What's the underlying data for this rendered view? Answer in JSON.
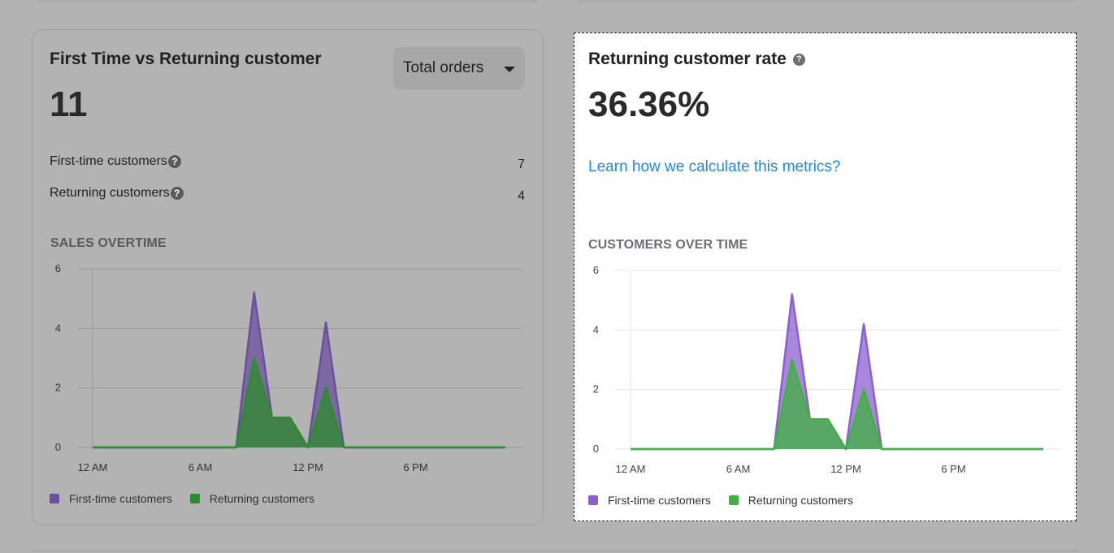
{
  "left_card": {
    "title": "First Time vs Returning customer",
    "total": "11",
    "dropdown_label": "Total orders",
    "rows": [
      {
        "label": "First-time customers",
        "value": "7"
      },
      {
        "label": "Returning customers",
        "value": "4"
      }
    ],
    "section_title": "SALES OVERTIME",
    "help_glyph": "?"
  },
  "right_card": {
    "title": "Returning customer rate",
    "rate": "36.36%",
    "link": "Learn how we calculate this metrics?",
    "section_title": "CUSTOMERS OVER TIME",
    "help_glyph": "?"
  },
  "legend": {
    "first_time": "First-time customers",
    "returning": "Returning customers"
  },
  "colors": {
    "first_time_left": "#6b4f9e",
    "returning_left": "#2e8b2e",
    "first_time_right": "#8b5fd0",
    "returning_right": "#3fb23f",
    "link": "#1e88e5"
  },
  "chart_data": [
    {
      "type": "area",
      "title": "SALES OVERTIME",
      "x_ticks": [
        "12 AM",
        "6 AM",
        "12 PM",
        "6 PM"
      ],
      "y_ticks": [
        "0",
        "2",
        "4",
        "6"
      ],
      "ylim": [
        0,
        6
      ],
      "x": [
        0,
        1,
        2,
        3,
        4,
        5,
        6,
        7,
        8,
        9,
        10,
        11,
        12,
        13,
        14,
        15,
        16,
        17,
        18,
        19,
        20,
        21,
        22,
        23
      ],
      "series": [
        {
          "name": "First-time customers",
          "values": [
            0,
            0,
            0,
            0,
            0,
            0,
            0,
            0,
            0,
            5.2,
            1,
            1,
            0,
            4.2,
            0,
            0,
            0,
            0,
            0,
            0,
            0,
            0,
            0,
            0
          ]
        },
        {
          "name": "Returning customers",
          "values": [
            0,
            0,
            0,
            0,
            0,
            0,
            0,
            0,
            0,
            3,
            1,
            1,
            0,
            2,
            0,
            0,
            0,
            0,
            0,
            0,
            0,
            0,
            0,
            0
          ]
        }
      ],
      "legend": "bottom-left",
      "grid": true
    },
    {
      "type": "area",
      "title": "CUSTOMERS OVER TIME",
      "x_ticks": [
        "12 AM",
        "6 AM",
        "12 PM",
        "6 PM"
      ],
      "y_ticks": [
        "0",
        "2",
        "4",
        "6"
      ],
      "ylim": [
        0,
        6
      ],
      "x": [
        0,
        1,
        2,
        3,
        4,
        5,
        6,
        7,
        8,
        9,
        10,
        11,
        12,
        13,
        14,
        15,
        16,
        17,
        18,
        19,
        20,
        21,
        22,
        23
      ],
      "series": [
        {
          "name": "First-time customers",
          "values": [
            0,
            0,
            0,
            0,
            0,
            0,
            0,
            0,
            0,
            5.2,
            1,
            1,
            0,
            4.2,
            0,
            0,
            0,
            0,
            0,
            0,
            0,
            0,
            0,
            0
          ]
        },
        {
          "name": "Returning customers",
          "values": [
            0,
            0,
            0,
            0,
            0,
            0,
            0,
            0,
            0,
            3,
            1,
            1,
            0,
            2,
            0,
            0,
            0,
            0,
            0,
            0,
            0,
            0,
            0,
            0
          ]
        }
      ],
      "legend": "bottom-left",
      "grid": true
    }
  ]
}
